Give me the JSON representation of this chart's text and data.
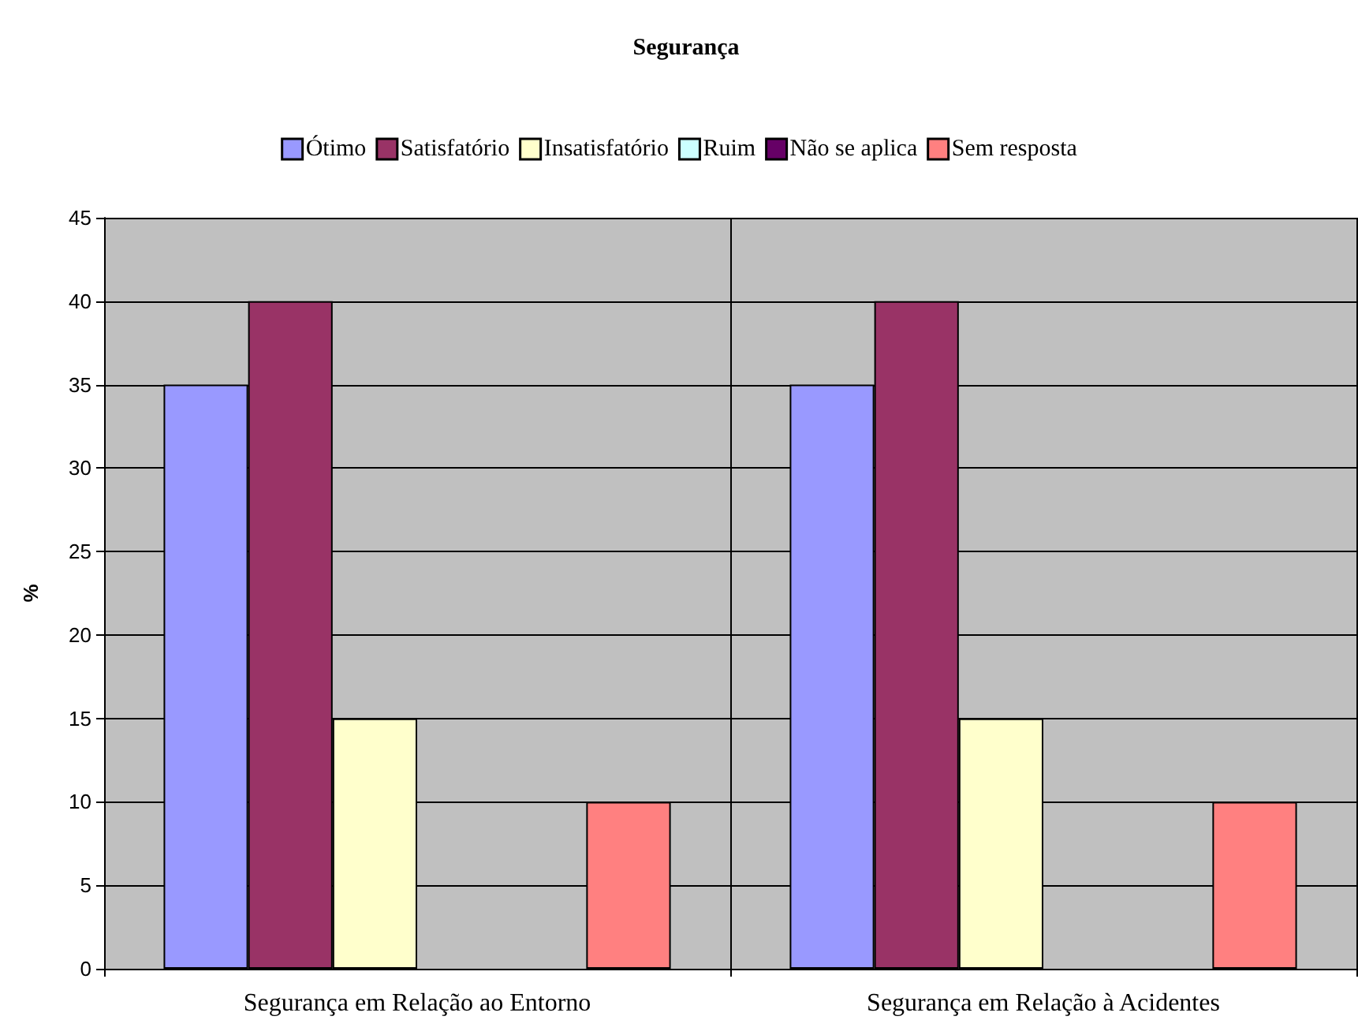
{
  "chart_data": {
    "type": "bar",
    "title": "Segurança",
    "ylabel": "%",
    "categories": [
      "Segurança em Relação ao Entorno",
      "Segurança em Relação à Acidentes"
    ],
    "series": [
      {
        "name": "Ótimo",
        "color": "#9999ff",
        "values": [
          35,
          35
        ]
      },
      {
        "name": "Satisfatório",
        "color": "#993366",
        "values": [
          40,
          40
        ]
      },
      {
        "name": "Insatisfatório",
        "color": "#ffffcc",
        "values": [
          15,
          15
        ]
      },
      {
        "name": "Ruim",
        "color": "#ccffff",
        "values": [
          0,
          0
        ]
      },
      {
        "name": "Não se aplica",
        "color": "#660066",
        "values": [
          0,
          0
        ]
      },
      {
        "name": "Sem resposta",
        "color": "#ff8080",
        "values": [
          10,
          10
        ]
      }
    ],
    "ylim": [
      0,
      45
    ],
    "yticks": [
      0,
      5,
      10,
      15,
      20,
      25,
      30,
      35,
      40,
      45
    ],
    "grid": true,
    "legend": "top"
  }
}
